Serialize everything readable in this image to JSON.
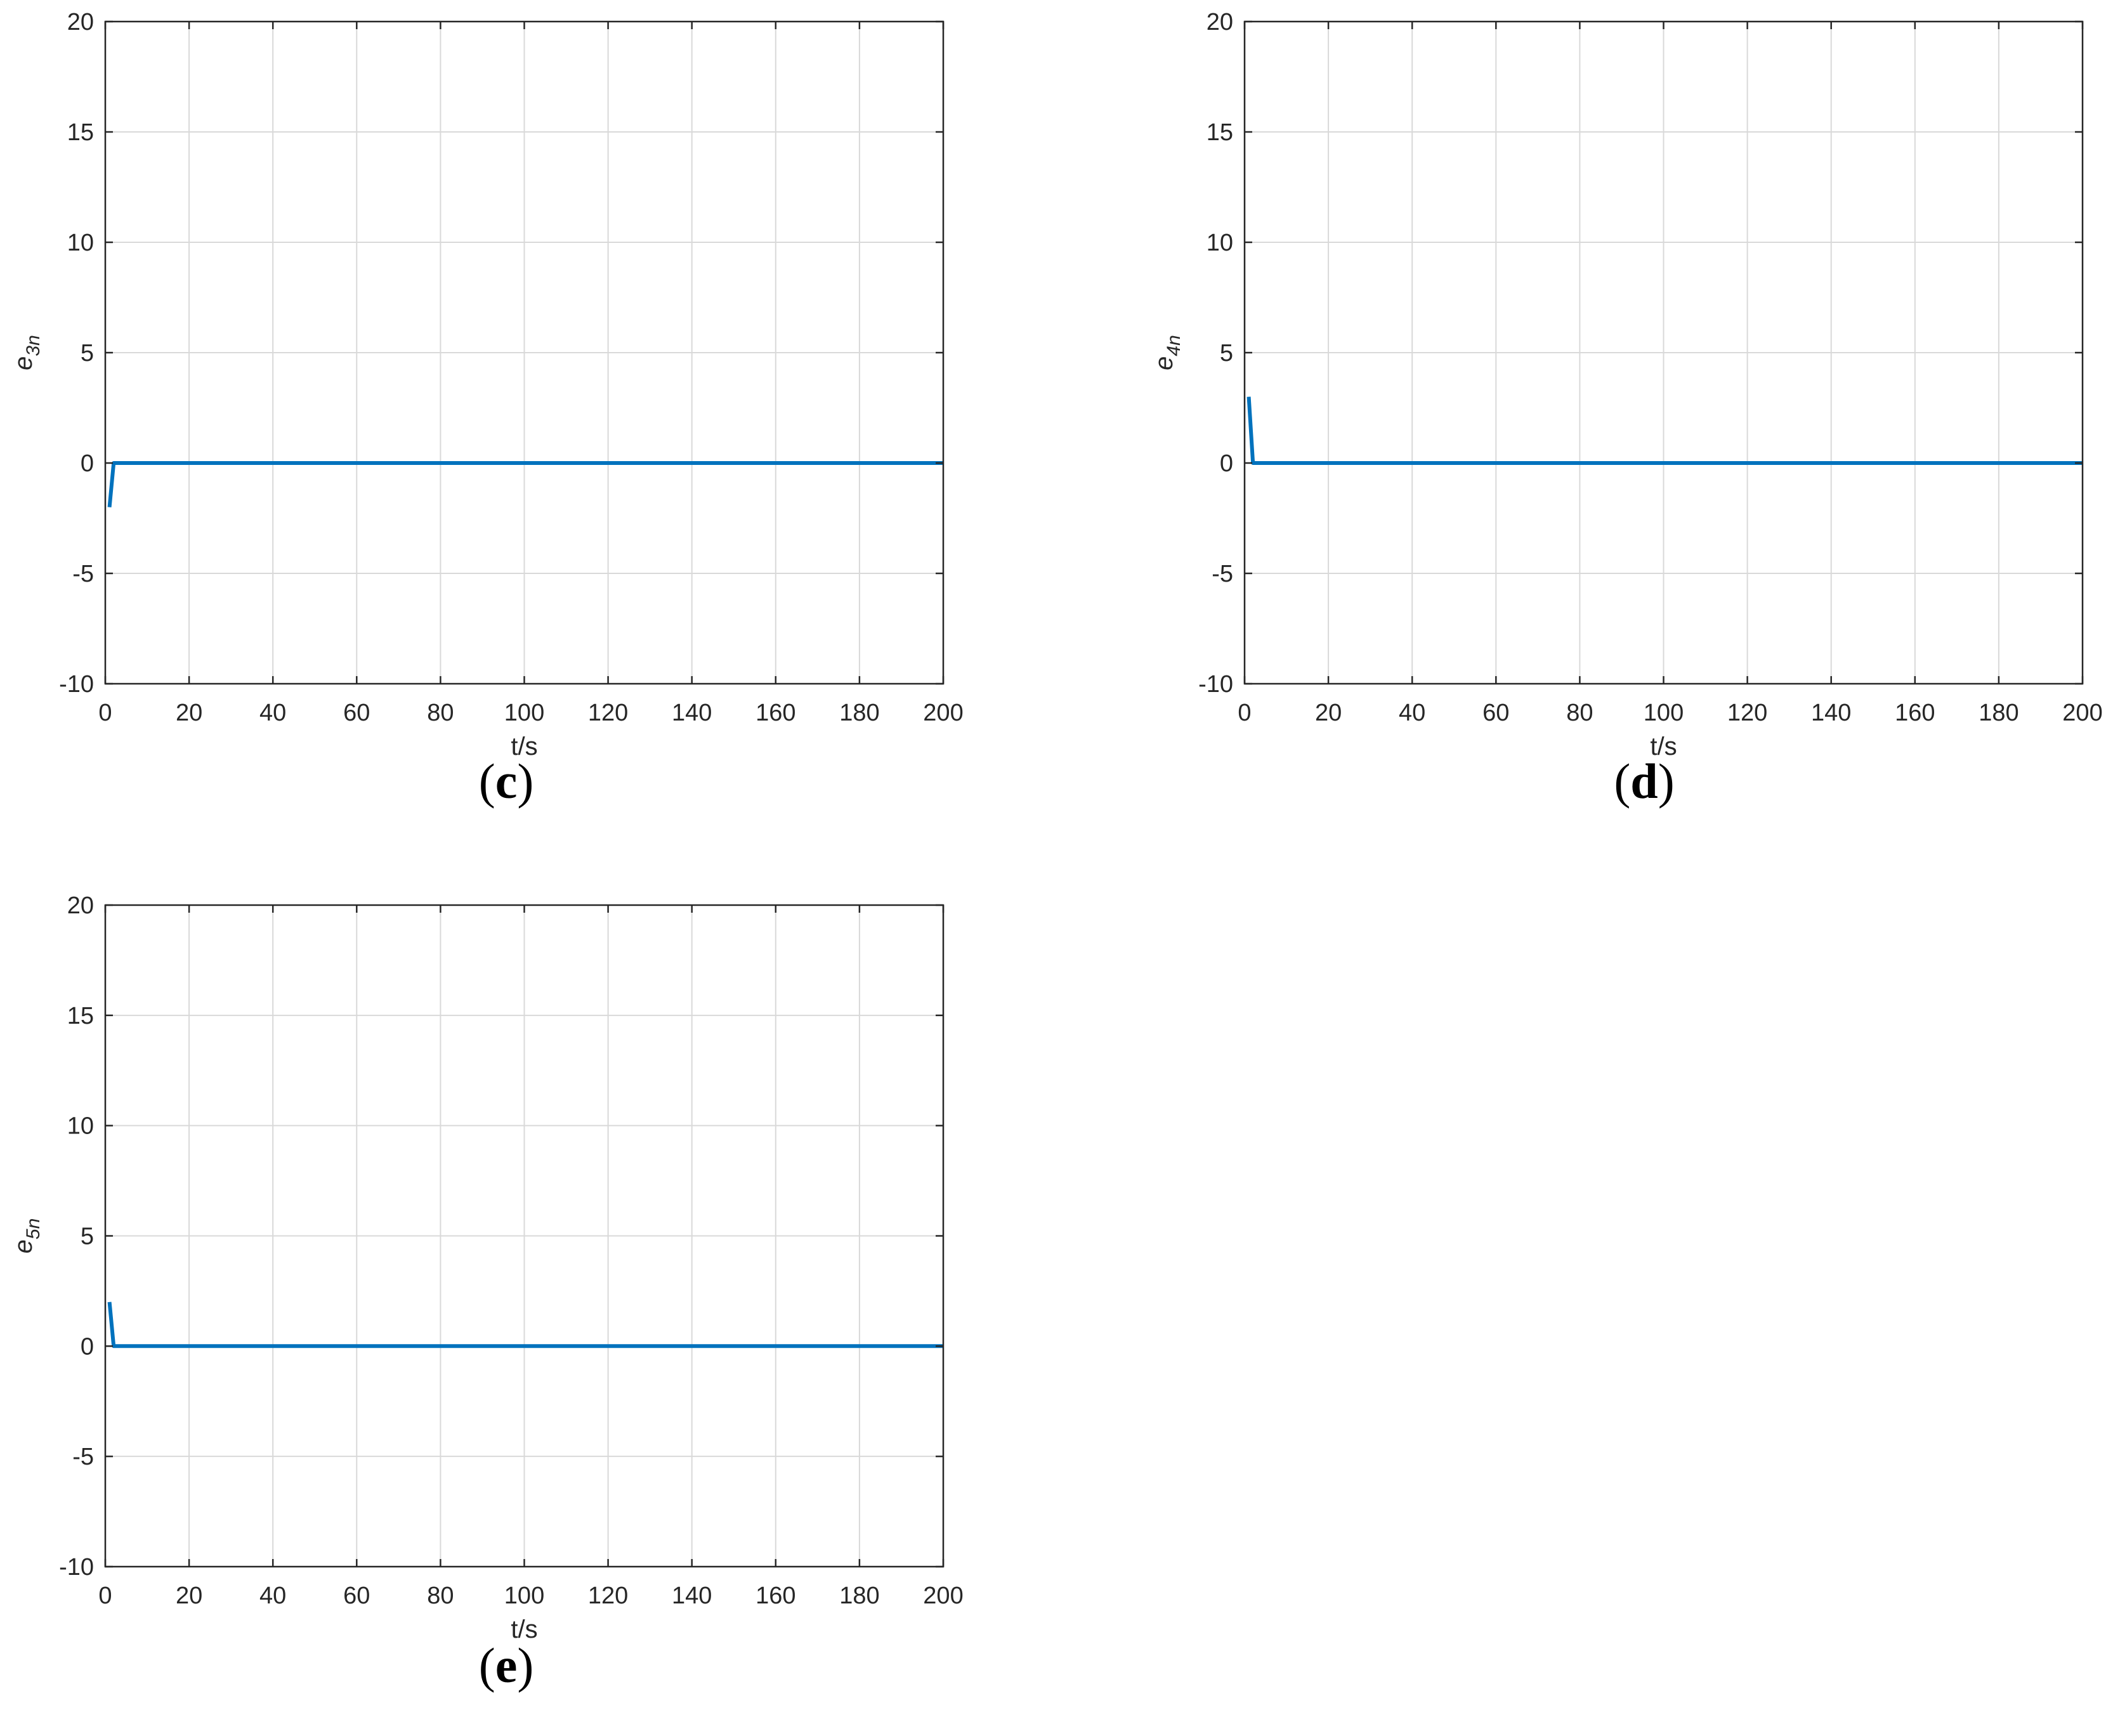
{
  "colors": {
    "series": "#0072BD",
    "grid": "#d9d9d9",
    "axes": "#262626"
  },
  "chart_data": [
    {
      "type": "line",
      "panel_label": "c",
      "xlabel": "t/s",
      "ylabel_base": "e",
      "ylabel_sub": "3n",
      "xlim": [
        0,
        200
      ],
      "ylim": [
        -10,
        20
      ],
      "xticks": [
        0,
        20,
        40,
        60,
        80,
        100,
        120,
        140,
        160,
        180,
        200
      ],
      "yticks": [
        -10,
        -5,
        0,
        5,
        10,
        15,
        20
      ],
      "grid": true,
      "series": [
        {
          "x": [
            1,
            2,
            200
          ],
          "y": [
            -2,
            0,
            0
          ]
        }
      ]
    },
    {
      "type": "line",
      "panel_label": "d",
      "xlabel": "t/s",
      "ylabel_base": "e",
      "ylabel_sub": "4n",
      "xlim": [
        0,
        200
      ],
      "ylim": [
        -10,
        20
      ],
      "xticks": [
        0,
        20,
        40,
        60,
        80,
        100,
        120,
        140,
        160,
        180,
        200
      ],
      "yticks": [
        -10,
        -5,
        0,
        5,
        10,
        15,
        20
      ],
      "grid": true,
      "series": [
        {
          "x": [
            1,
            2,
            200
          ],
          "y": [
            3,
            0,
            0
          ]
        }
      ]
    },
    {
      "type": "line",
      "panel_label": "e",
      "xlabel": "t/s",
      "ylabel_base": "e",
      "ylabel_sub": "5n",
      "xlim": [
        0,
        200
      ],
      "ylim": [
        -10,
        20
      ],
      "xticks": [
        0,
        20,
        40,
        60,
        80,
        100,
        120,
        140,
        160,
        180,
        200
      ],
      "yticks": [
        -10,
        -5,
        0,
        5,
        10,
        15,
        20
      ],
      "grid": true,
      "series": [
        {
          "x": [
            1,
            2,
            200
          ],
          "y": [
            2,
            0,
            0
          ]
        }
      ]
    }
  ]
}
